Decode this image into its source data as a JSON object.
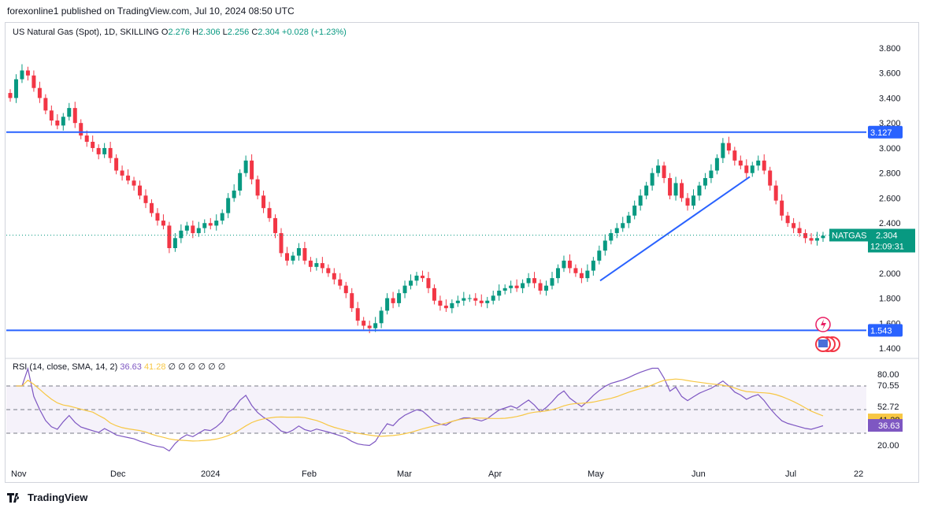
{
  "header": {
    "published": "forexonline1 published on TradingView.com, Jul 10, 2024 08:50 UTC"
  },
  "legend": {
    "symbol": "US Natural Gas (Spot), 1D, SKILLING",
    "o_label": "O",
    "o": "2.276",
    "h_label": "H",
    "h": "2.306",
    "l_label": "L",
    "l": "2.256",
    "c_label": "C",
    "c": "2.304",
    "change": "+0.028 (+1.23%)"
  },
  "rsi_legend": {
    "label": "RSI (14, close, SMA, 14, 2)",
    "rsi": "36.63",
    "sma": "41.28",
    "extras": "∅ ∅ ∅ ∅ ∅ ∅"
  },
  "footer": {
    "brand": "TradingView"
  },
  "colors": {
    "up": "#089981",
    "down": "#f23645",
    "line": "#2962ff",
    "rsi": "#7e57c2",
    "rsi_sma": "#f7c744",
    "badge": "#2962ff"
  },
  "chart_data": {
    "type": "candlestick",
    "price_axis": {
      "ticks": [
        "3.800",
        "3.600",
        "3.400",
        "3.200",
        "3.000",
        "2.800",
        "2.600",
        "2.400",
        "2.000",
        "1.800",
        "1.600",
        "1.400"
      ],
      "range": [
        1.35,
        3.9
      ]
    },
    "time_axis": {
      "ticks": [
        "Nov",
        "Dec",
        "2024",
        "Feb",
        "Mar",
        "Apr",
        "May",
        "Jun",
        "Jul",
        "22"
      ]
    },
    "horizontal_lines": [
      {
        "value": 3.127,
        "label": "3.127"
      },
      {
        "value": 1.543,
        "label": "1.543"
      }
    ],
    "trendline": {
      "from": {
        "date": "2024-05-01",
        "price": 1.94
      },
      "to": {
        "date": "2024-06-17",
        "price": 2.77
      }
    },
    "last_price": {
      "symbol": "NATGAS",
      "value": "2.304",
      "countdown": "12:09:31"
    },
    "closes": [
      3.4,
      3.55,
      3.62,
      3.58,
      3.48,
      3.4,
      3.3,
      3.22,
      3.18,
      3.25,
      3.32,
      3.2,
      3.1,
      3.05,
      3.0,
      2.95,
      3.0,
      2.92,
      2.82,
      2.78,
      2.74,
      2.7,
      2.62,
      2.56,
      2.48,
      2.42,
      2.38,
      2.2,
      2.28,
      2.34,
      2.38,
      2.32,
      2.36,
      2.4,
      2.38,
      2.42,
      2.48,
      2.6,
      2.66,
      2.8,
      2.9,
      2.75,
      2.62,
      2.52,
      2.44,
      2.32,
      2.16,
      2.1,
      2.14,
      2.2,
      2.1,
      2.05,
      2.08,
      2.04,
      2.0,
      1.95,
      1.9,
      1.84,
      1.72,
      1.62,
      1.58,
      1.56,
      1.6,
      1.7,
      1.8,
      1.76,
      1.84,
      1.9,
      1.94,
      1.98,
      1.96,
      1.88,
      1.78,
      1.74,
      1.72,
      1.76,
      1.78,
      1.8,
      1.8,
      1.78,
      1.76,
      1.78,
      1.82,
      1.86,
      1.88,
      1.9,
      1.88,
      1.92,
      1.96,
      1.92,
      1.86,
      1.9,
      1.96,
      2.04,
      2.1,
      2.04,
      2.0,
      1.96,
      2.02,
      2.1,
      2.18,
      2.26,
      2.32,
      2.36,
      2.4,
      2.46,
      2.54,
      2.62,
      2.7,
      2.8,
      2.86,
      2.76,
      2.62,
      2.72,
      2.6,
      2.54,
      2.62,
      2.7,
      2.76,
      2.82,
      2.92,
      3.04,
      2.98,
      2.9,
      2.86,
      2.8,
      2.86,
      2.9,
      2.82,
      2.7,
      2.58,
      2.46,
      2.4,
      2.36,
      2.32,
      2.28,
      2.26,
      2.28,
      2.3
    ],
    "rsi": {
      "levels": [
        "80.00",
        "70.55",
        "52.72",
        "20.00"
      ],
      "last": "36.63",
      "sma_last": "41.28",
      "bands": [
        70,
        50,
        30
      ]
    }
  }
}
